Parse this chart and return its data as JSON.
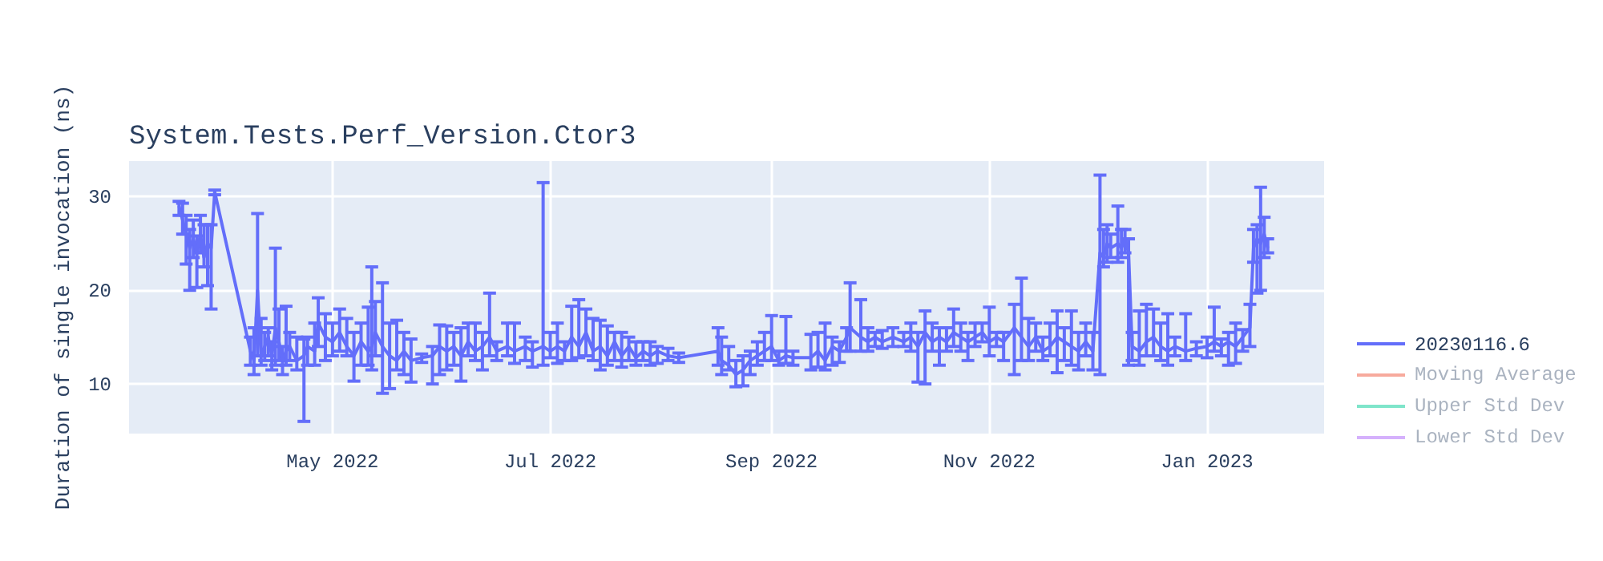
{
  "chart_data": {
    "type": "line",
    "title": "System.Tests.Perf_Version.Ctor3",
    "ylabel": "Duration of single invocation (ns)",
    "xlim": [
      "2022-03-05",
      "2023-02-03"
    ],
    "xticks": [
      {
        "value": "2022-05-01",
        "label": "May 2022"
      },
      {
        "value": "2022-07-01",
        "label": "Jul 2022"
      },
      {
        "value": "2022-09-01",
        "label": "Sep 2022"
      },
      {
        "value": "2022-11-01",
        "label": "Nov 2022"
      },
      {
        "value": "2023-01-01",
        "label": "Jan 2023"
      }
    ],
    "ylim": [
      4.7,
      33.8
    ],
    "yticks": [
      10,
      20,
      30
    ],
    "grid": true,
    "legend": "right",
    "marker": "none",
    "line_style": "solid",
    "series": [
      {
        "name": "20230116.6",
        "color": "#636efa",
        "x": [
          "2022-03-19",
          "2022-03-20",
          "2022-03-21",
          "2022-03-22",
          "2022-03-23",
          "2022-03-24",
          "2022-03-25",
          "2022-03-26",
          "2022-03-27",
          "2022-03-28",
          "2022-03-29",
          "2022-04-08",
          "2022-04-09",
          "2022-04-10",
          "2022-04-11",
          "2022-04-12",
          "2022-04-13",
          "2022-04-14",
          "2022-04-15",
          "2022-04-16",
          "2022-04-17",
          "2022-04-18",
          "2022-04-19",
          "2022-04-21",
          "2022-04-23",
          "2022-04-24",
          "2022-04-26",
          "2022-04-27",
          "2022-04-29",
          "2022-05-01",
          "2022-05-03",
          "2022-05-05",
          "2022-05-07",
          "2022-05-09",
          "2022-05-11",
          "2022-05-12",
          "2022-05-13",
          "2022-05-15",
          "2022-05-17",
          "2022-05-19",
          "2022-05-21",
          "2022-05-23",
          "2022-05-26",
          "2022-05-29",
          "2022-05-31",
          "2022-06-02",
          "2022-06-04",
          "2022-06-06",
          "2022-06-08",
          "2022-06-10",
          "2022-06-12",
          "2022-06-14",
          "2022-06-16",
          "2022-06-19",
          "2022-06-21",
          "2022-06-24",
          "2022-06-26",
          "2022-06-29",
          "2022-07-01",
          "2022-07-03",
          "2022-07-05",
          "2022-07-07",
          "2022-07-09",
          "2022-07-11",
          "2022-07-13",
          "2022-07-15",
          "2022-07-17",
          "2022-07-19",
          "2022-07-21",
          "2022-07-23",
          "2022-07-25",
          "2022-07-27",
          "2022-07-29",
          "2022-07-31",
          "2022-08-03",
          "2022-08-06",
          "2022-08-17",
          "2022-08-18",
          "2022-08-20",
          "2022-08-22",
          "2022-08-24",
          "2022-08-26",
          "2022-08-28",
          "2022-08-30",
          "2022-09-01",
          "2022-09-03",
          "2022-09-05",
          "2022-09-07",
          "2022-09-12",
          "2022-09-14",
          "2022-09-16",
          "2022-09-18",
          "2022-09-20",
          "2022-09-22",
          "2022-09-23",
          "2022-09-26",
          "2022-09-28",
          "2022-09-30",
          "2022-10-02",
          "2022-10-05",
          "2022-10-08",
          "2022-10-10",
          "2022-10-12",
          "2022-10-14",
          "2022-10-16",
          "2022-10-18",
          "2022-10-20",
          "2022-10-22",
          "2022-10-24",
          "2022-10-26",
          "2022-10-28",
          "2022-10-30",
          "2022-11-01",
          "2022-11-03",
          "2022-11-05",
          "2022-11-08",
          "2022-11-10",
          "2022-11-12",
          "2022-11-14",
          "2022-11-16",
          "2022-11-18",
          "2022-11-20",
          "2022-11-22",
          "2022-11-24",
          "2022-11-26",
          "2022-11-28",
          "2022-11-30",
          "2022-12-02",
          "2022-12-03",
          "2022-12-04",
          "2022-12-05",
          "2022-12-07",
          "2022-12-08",
          "2022-12-09",
          "2022-12-10",
          "2022-12-11",
          "2022-12-13",
          "2022-12-15",
          "2022-12-17",
          "2022-12-19",
          "2022-12-21",
          "2022-12-23",
          "2022-12-26",
          "2022-12-29",
          "2023-01-01",
          "2023-01-03",
          "2023-01-05",
          "2023-01-07",
          "2023-01-09",
          "2023-01-11",
          "2023-01-13",
          "2023-01-14",
          "2023-01-15",
          "2023-01-16",
          "2023-01-17",
          "2023-01-18"
        ],
        "values": [
          29,
          27.5,
          26,
          24.5,
          25.5,
          24,
          26,
          23.5,
          25,
          24.5,
          30.5,
          13.5,
          12.5,
          20,
          13,
          14,
          15,
          13,
          16,
          14.5,
          12.5,
          13.5,
          14,
          12.5,
          13,
          14,
          13.5,
          16.5,
          15,
          14.5,
          15.5,
          14,
          13,
          14.5,
          13.5,
          14,
          15.5,
          14,
          13,
          12.5,
          13.5,
          12.5,
          12.8,
          13,
          14,
          13.5,
          14,
          13,
          14.5,
          13.5,
          14,
          15,
          13.5,
          14,
          13.5,
          14,
          13.5,
          14,
          13.5,
          14,
          13.5,
          15,
          14,
          15.5,
          13.5,
          14,
          13,
          14.5,
          13,
          14,
          12.8,
          13.5,
          13,
          13.5,
          13,
          12.8,
          13.5,
          12.5,
          12,
          11,
          11.5,
          12.5,
          13,
          13.5,
          14,
          12.5,
          13,
          12.8,
          12.8,
          13.5,
          12.5,
          14,
          13.5,
          15,
          16,
          15,
          14.5,
          15,
          14.5,
          15,
          14.5,
          15,
          14,
          15.5,
          14.5,
          15,
          14.5,
          15.5,
          15,
          14.5,
          15,
          15.5,
          14.5,
          15,
          14.5,
          16,
          15,
          14,
          15,
          13.5,
          14,
          15,
          14.5,
          14,
          13.5,
          14.5,
          13.5,
          24,
          23.5,
          25,
          24.5,
          25,
          24.5,
          25.5,
          24,
          14,
          13.5,
          14.5,
          15,
          14,
          13.5,
          14,
          13.5,
          13.8,
          14,
          14.5,
          14,
          14.5,
          14,
          15,
          16,
          24.5,
          25.5,
          25,
          26,
          24.5
        ],
        "errors": [
          [
            28,
            29.5
          ],
          [
            26,
            29.3
          ],
          [
            22.8,
            28
          ],
          [
            20,
            26.5
          ],
          [
            23.5,
            27.5
          ],
          [
            20.3,
            25.8
          ],
          [
            24,
            28
          ],
          [
            22.5,
            27
          ],
          [
            20.5,
            27
          ],
          [
            18,
            27
          ],
          [
            30.2,
            30.7
          ],
          [
            12,
            15
          ],
          [
            11,
            16
          ],
          [
            13,
            28.2
          ],
          [
            12,
            17
          ],
          [
            12.5,
            15.5
          ],
          [
            13,
            16
          ],
          [
            11.5,
            14.5
          ],
          [
            12,
            24.5
          ],
          [
            12.5,
            18
          ],
          [
            11,
            14
          ],
          [
            12,
            18.3
          ],
          [
            12.5,
            15.5
          ],
          [
            11.5,
            15
          ],
          [
            6,
            14.8
          ],
          [
            12,
            15
          ],
          [
            12,
            16.5
          ],
          [
            14,
            19.2
          ],
          [
            12.5,
            17.5
          ],
          [
            13,
            16.5
          ],
          [
            13.5,
            18
          ],
          [
            13,
            17
          ],
          [
            10.3,
            15.5
          ],
          [
            12,
            16.5
          ],
          [
            12,
            18.2
          ],
          [
            11.5,
            22.5
          ],
          [
            13,
            18.8
          ],
          [
            9,
            20.8
          ],
          [
            9.5,
            16.5
          ],
          [
            11.5,
            16.8
          ],
          [
            11,
            15.5
          ],
          [
            10.2,
            14.8
          ],
          [
            12.3,
            13.2
          ],
          [
            10,
            14
          ],
          [
            11,
            16.3
          ],
          [
            11.5,
            16.2
          ],
          [
            12,
            15.5
          ],
          [
            10.3,
            16
          ],
          [
            13,
            16.5
          ],
          [
            12.5,
            16.5
          ],
          [
            11.5,
            15.5
          ],
          [
            13,
            19.7
          ],
          [
            12.5,
            14.5
          ],
          [
            13,
            16.5
          ],
          [
            12.2,
            16.5
          ],
          [
            12.5,
            15
          ],
          [
            11.8,
            14.5
          ],
          [
            12,
            31.5
          ],
          [
            12.8,
            15.5
          ],
          [
            12.2,
            16.5
          ],
          [
            12.5,
            14.5
          ],
          [
            12.5,
            18.3
          ],
          [
            12.8,
            19
          ],
          [
            13,
            18
          ],
          [
            12.5,
            17
          ],
          [
            11.5,
            16.8
          ],
          [
            12,
            16.2
          ],
          [
            12.5,
            15.5
          ],
          [
            11.8,
            15.5
          ],
          [
            12.5,
            15
          ],
          [
            12,
            14.5
          ],
          [
            12.5,
            14.5
          ],
          [
            12,
            14.5
          ],
          [
            12.2,
            14
          ],
          [
            12.5,
            13.8
          ],
          [
            12.3,
            13.3
          ],
          [
            12,
            16
          ],
          [
            11,
            15
          ],
          [
            11.5,
            14
          ],
          [
            9.7,
            12.5
          ],
          [
            9.8,
            13
          ],
          [
            11,
            13.5
          ],
          [
            12,
            14.5
          ],
          [
            12.5,
            15.5
          ],
          [
            12.5,
            17.3
          ],
          [
            12,
            13.5
          ],
          [
            12.2,
            17.2
          ],
          [
            12,
            13.5
          ],
          [
            11.5,
            15.3
          ],
          [
            11.8,
            15.5
          ],
          [
            11.5,
            16.5
          ],
          [
            12,
            15
          ],
          [
            12.3,
            14.5
          ],
          [
            13.5,
            16
          ],
          [
            13.5,
            20.8
          ],
          [
            13.5,
            19
          ],
          [
            13.5,
            16
          ],
          [
            14,
            15.5
          ],
          [
            13.8,
            15.7
          ],
          [
            14,
            16
          ],
          [
            14,
            15.5
          ],
          [
            13.5,
            16.5
          ],
          [
            10.2,
            15.5
          ],
          [
            10,
            17.8
          ],
          [
            13.5,
            16.5
          ],
          [
            12,
            16
          ],
          [
            13.5,
            16
          ],
          [
            14,
            18
          ],
          [
            13.5,
            16.5
          ],
          [
            12.5,
            15.5
          ],
          [
            14,
            16.5
          ],
          [
            14.5,
            16.5
          ],
          [
            13,
            18.2
          ],
          [
            14,
            15.5
          ],
          [
            12.5,
            15.5
          ],
          [
            11,
            18.5
          ],
          [
            12.5,
            21.3
          ],
          [
            12.5,
            17
          ],
          [
            13.5,
            16.5
          ],
          [
            12.5,
            15
          ],
          [
            13,
            16.5
          ],
          [
            11.2,
            17.8
          ],
          [
            12.5,
            16
          ],
          [
            12,
            17.8
          ],
          [
            11.5,
            15.5
          ],
          [
            13,
            16.5
          ],
          [
            11.5,
            15.5
          ],
          [
            11,
            32.3
          ],
          [
            22.5,
            26.5
          ],
          [
            23,
            27
          ],
          [
            23.5,
            26
          ],
          [
            23,
            29
          ],
          [
            23.5,
            26.5
          ],
          [
            24,
            26.5
          ],
          [
            12,
            25.5
          ],
          [
            12.5,
            15.5
          ],
          [
            12,
            17.8
          ],
          [
            13,
            18.5
          ],
          [
            13,
            18
          ],
          [
            12.5,
            16.5
          ],
          [
            12,
            17.5
          ],
          [
            13,
            15
          ],
          [
            12.5,
            17.5
          ],
          [
            13,
            14.5
          ],
          [
            12.8,
            15
          ],
          [
            13.5,
            18.2
          ],
          [
            13,
            14.8
          ],
          [
            12,
            15.5
          ],
          [
            12.2,
            16.5
          ],
          [
            13.5,
            15.8
          ],
          [
            14,
            18.5
          ],
          [
            23,
            26.5
          ],
          [
            19.7,
            27
          ],
          [
            20,
            31
          ],
          [
            23.5,
            27.8
          ],
          [
            24,
            25.5
          ]
        ]
      },
      {
        "name": "Moving Average",
        "color": "#ef553b"
      },
      {
        "name": "Upper Std Dev",
        "color": "#00cc96"
      },
      {
        "name": "Lower Std Dev",
        "color": "#ab63fa"
      }
    ]
  }
}
